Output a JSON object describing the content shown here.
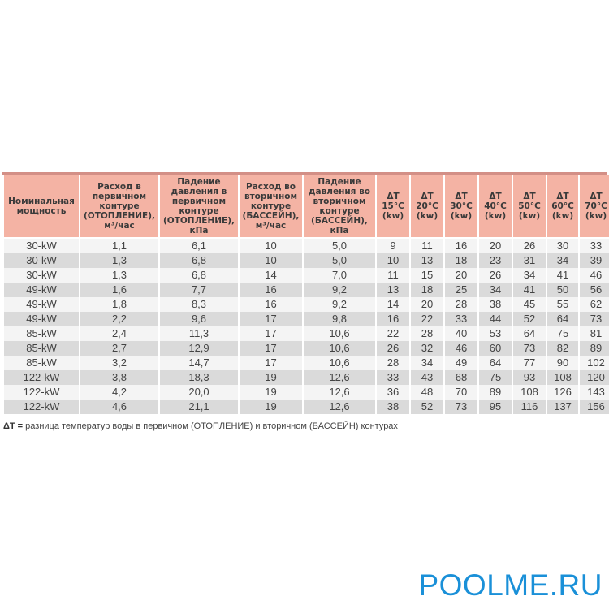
{
  "table": {
    "headers": [
      "Номинальная мощность",
      "Расход в первичном контуре (ОТОПЛЕНИЕ), м³/час",
      "Падение давления в первичном контуре (ОТОПЛЕНИЕ), кПа",
      "Расход во вторичном контуре (БАССЕЙН), м³/час",
      "Падение давления во вторичном контуре (БАССЕЙН), кПа",
      "ΔT 15°C (kw)",
      "ΔT 20°C (kw)",
      "ΔT 30°C (kw)",
      "ΔT 40°C (kw)",
      "ΔT 50°C (kw)",
      "ΔT 60°C (kw)",
      "ΔT 70°C (kw)"
    ],
    "rows": [
      [
        "30-kW",
        "1,1",
        "6,1",
        "10",
        "5,0",
        "9",
        "11",
        "16",
        "20",
        "26",
        "30",
        "33"
      ],
      [
        "30-kW",
        "1,3",
        "6,8",
        "10",
        "5,0",
        "10",
        "13",
        "18",
        "23",
        "31",
        "34",
        "39"
      ],
      [
        "30-kW",
        "1,3",
        "6,8",
        "14",
        "7,0",
        "11",
        "15",
        "20",
        "26",
        "34",
        "41",
        "46"
      ],
      [
        "49-kW",
        "1,6",
        "7,7",
        "16",
        "9,2",
        "13",
        "18",
        "25",
        "34",
        "41",
        "50",
        "56"
      ],
      [
        "49-kW",
        "1,8",
        "8,3",
        "16",
        "9,2",
        "14",
        "20",
        "28",
        "38",
        "45",
        "55",
        "62"
      ],
      [
        "49-kW",
        "2,2",
        "9,6",
        "17",
        "9,8",
        "16",
        "22",
        "33",
        "44",
        "52",
        "64",
        "73"
      ],
      [
        "85-kW",
        "2,4",
        "11,3",
        "17",
        "10,6",
        "22",
        "28",
        "40",
        "53",
        "64",
        "75",
        "81"
      ],
      [
        "85-kW",
        "2,7",
        "12,9",
        "17",
        "10,6",
        "26",
        "32",
        "46",
        "60",
        "73",
        "82",
        "89"
      ],
      [
        "85-kW",
        "3,2",
        "14,7",
        "17",
        "10,6",
        "28",
        "34",
        "49",
        "64",
        "77",
        "90",
        "102"
      ],
      [
        "122-kW",
        "3,8",
        "18,3",
        "19",
        "12,6",
        "33",
        "43",
        "68",
        "75",
        "93",
        "108",
        "120"
      ],
      [
        "122-kW",
        "4,2",
        "20,0",
        "19",
        "12,6",
        "36",
        "48",
        "70",
        "89",
        "108",
        "126",
        "143"
      ],
      [
        "122-kW",
        "4,6",
        "21,1",
        "19",
        "12,6",
        "38",
        "52",
        "73",
        "95",
        "116",
        "137",
        "156"
      ]
    ]
  },
  "note": {
    "term": "ΔT =",
    "text": " разница температур воды в первичном (ОТОПЛЕНИЕ) и вторичном (БАССЕЙН) контурах"
  },
  "brand": "POOLME.RU",
  "colors": {
    "header": "#f4b3a4",
    "rule": "#d38f86",
    "row_alt": "#dadada",
    "brand": "#1a90d8"
  }
}
